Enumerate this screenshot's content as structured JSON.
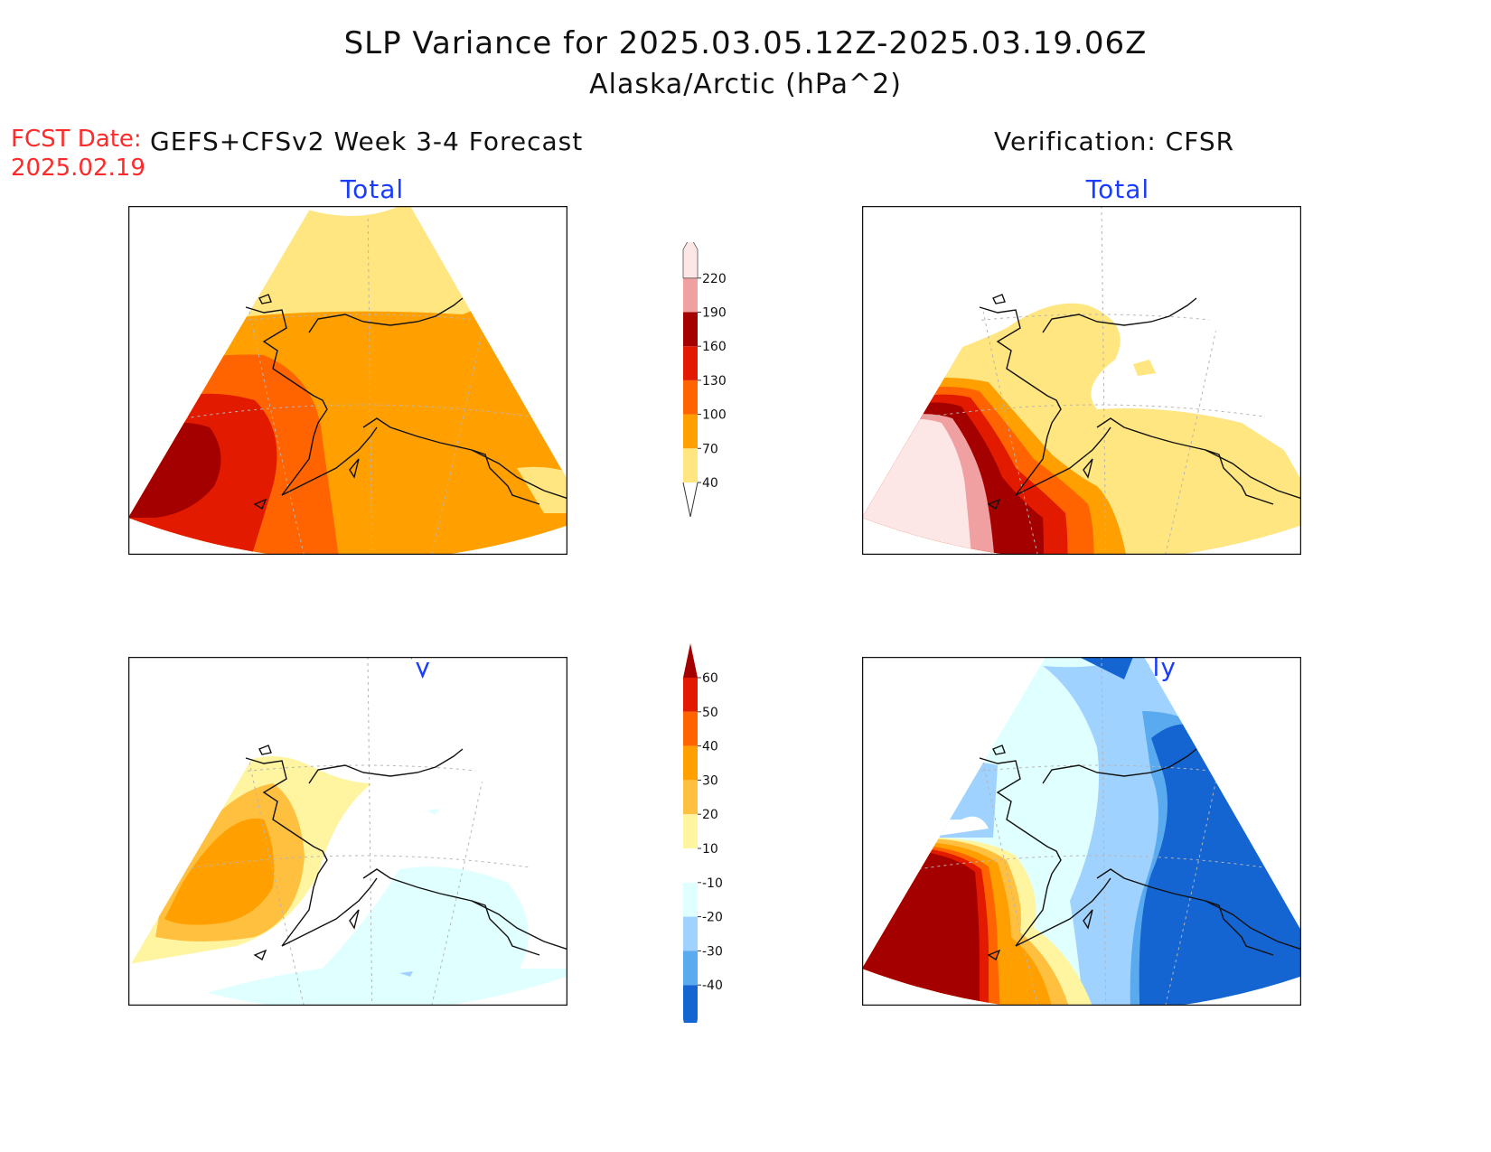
{
  "header": {
    "title": "SLP Variance for 2025.03.05.12Z-2025.03.19.06Z",
    "subtitle": "Alaska/Arctic (hPa^2)",
    "fcst_label": "FCST Date:",
    "fcst_date": "2025.02.19",
    "left_column_title": "GEFS+CFSv2 Week 3-4 Forecast",
    "right_column_title": "Verification: CFSR"
  },
  "panels": {
    "forecast_total": {
      "title": "Total"
    },
    "verification_total": {
      "title": "Total"
    },
    "forecast_anomaly": {
      "title": "Anomaly"
    },
    "verification_anomaly": {
      "title": "Anomaly"
    }
  },
  "total_colorbar": {
    "levels": [
      "40",
      "70",
      "100",
      "130",
      "160",
      "190",
      "220"
    ],
    "colors": [
      "#ffe680",
      "#ffa000",
      "#ff6400",
      "#e11a00",
      "#a50000",
      "#f0a0a0",
      "#fde6e6"
    ]
  },
  "anomaly_colorbar": {
    "levels": [
      "60",
      "50",
      "40",
      "30",
      "20",
      "10",
      "-10",
      "-20",
      "-30",
      "-40"
    ],
    "colors": [
      "#a50000",
      "#e11a00",
      "#ff6400",
      "#ffa000",
      "#ffc040",
      "#fff5a0",
      "#ffffff",
      "#e0ffff",
      "#a0d2ff",
      "#5aaaf0",
      "#1464d2"
    ]
  },
  "colors": {
    "title_text": "#111111",
    "fcst_text": "#ff2a2a",
    "panel_title": "#1a3cff"
  }
}
